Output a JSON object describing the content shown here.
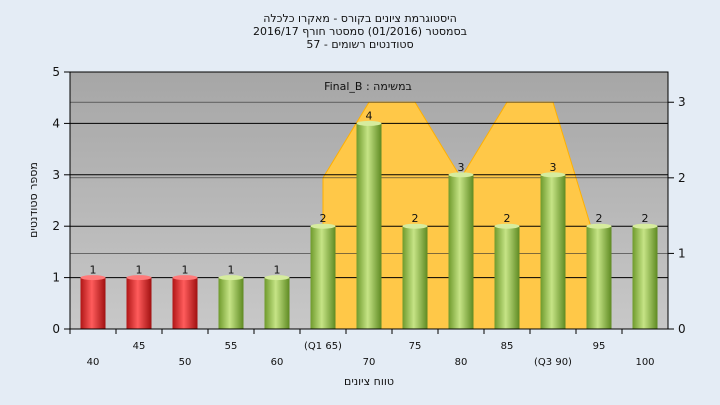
{
  "title_lines": [
    "היסטוגרמת ציונים בקורס - מאקרו כלכלה",
    "בסמסטר  (01/2016)  סמסטר חורף 2016/17",
    "סטודנטים רשומים - 57"
  ],
  "inner_label": "במשימה : Final_B",
  "colors": {
    "background": "#e4ecf5",
    "plot_bg": "#b2b2b2",
    "area_fill": "#ffc848",
    "area_stroke": "#ffb000",
    "fail_bar": "#e02020",
    "pass_bar": "#8cc040"
  },
  "chart_data": {
    "type": "bar",
    "categories": [
      "40",
      "45",
      "50",
      "55",
      "60",
      "(Q1 65)",
      "70",
      "75",
      "80",
      "85",
      "(Q3 90)",
      "95",
      "100"
    ],
    "values": [
      1,
      1,
      1,
      1,
      1,
      2,
      4,
      2,
      3,
      2,
      3,
      2,
      2
    ],
    "data_labels": [
      "1",
      "1",
      "1",
      "1",
      "1",
      "2",
      "4",
      "2",
      "3",
      "2",
      "3",
      "2",
      "2"
    ],
    "bar_status": [
      "fail",
      "fail",
      "fail",
      "pass",
      "pass",
      "pass",
      "pass",
      "pass",
      "pass",
      "pass",
      "pass",
      "pass",
      "pass"
    ],
    "xlabel": "טווח ציונים",
    "ylabel": "מספר סטודנטים",
    "ylim": [
      0,
      5
    ],
    "yticks": [
      0,
      1,
      2,
      3,
      4,
      5
    ],
    "y2lim": [
      0,
      3.4
    ],
    "y2ticks": [
      0,
      1,
      2,
      3
    ],
    "area_series": {
      "categories": [
        "(Q1 65)",
        "70",
        "75",
        "80",
        "85",
        "(Q3 90)",
        "95"
      ],
      "values": [
        2,
        3,
        3,
        2,
        3,
        3,
        1
      ]
    },
    "grid": true
  }
}
